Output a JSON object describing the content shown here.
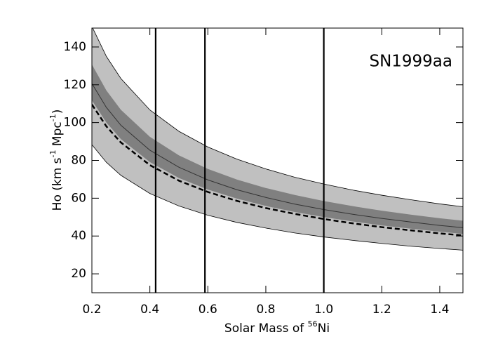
{
  "chart_data": {
    "type": "line",
    "annotation": "SN1999aa",
    "xlabel": [
      {
        "text": "Solar Mass of "
      },
      {
        "sup": "56"
      },
      {
        "text": "Ni"
      }
    ],
    "ylabel": [
      {
        "text": "Ho (km s"
      },
      {
        "sup": "-1"
      },
      {
        "text": " Mpc"
      },
      {
        "sup": "-1"
      },
      {
        "text": ")"
      }
    ],
    "x": [
      0.2,
      0.25,
      0.3,
      0.4,
      0.5,
      0.6,
      0.7,
      0.8,
      0.9,
      1.0,
      1.1,
      1.2,
      1.3,
      1.4,
      1.48
    ],
    "bands": [
      {
        "color": "#c0c0c0",
        "outline": true,
        "upper": [
          150.9,
          135,
          123.3,
          106.7,
          95.4,
          87.1,
          80.7,
          75.5,
          71.1,
          67.5,
          64.3,
          61.6,
          59.2,
          57.0,
          55.5
        ],
        "lower": [
          88.3,
          79,
          72.1,
          62.5,
          55.9,
          51,
          47.2,
          44.2,
          41.6,
          39.5,
          37.7,
          36.1,
          34.6,
          33.4,
          32.5
        ]
      },
      {
        "color": "#808080",
        "outline": false,
        "upper": [
          130.8,
          117,
          106.8,
          92.5,
          82.7,
          75.5,
          69.9,
          65.4,
          61.7,
          58.5,
          55.8,
          53.4,
          51.3,
          49.4,
          48.1
        ],
        "lower": [
          111.8,
          100,
          91.3,
          79.1,
          70.7,
          64.6,
          59.8,
          55.9,
          52.7,
          50,
          47.7,
          45.6,
          43.9,
          42.3,
          41.1
        ]
      }
    ],
    "series": [
      {
        "color": "#333333",
        "style": "solid",
        "values": [
          120.7,
          108,
          98.6,
          85.4,
          76.4,
          69.7,
          64.5,
          60.4,
          56.9,
          54,
          51.5,
          49.3,
          47.4,
          45.6,
          44.4
        ]
      },
      {
        "color": "#000000",
        "style": "dashed",
        "values": [
          109.6,
          98,
          89.5,
          77.5,
          69.3,
          63.3,
          58.6,
          54.8,
          51.7,
          49,
          46.7,
          44.7,
          43.0,
          41.4,
          40.3
        ]
      }
    ],
    "vlines": [
      0.42,
      0.59,
      1.0
    ],
    "xlim": [
      0.2,
      1.48
    ],
    "ylim": [
      10,
      150
    ],
    "xticks": [
      0.2,
      0.4,
      0.6,
      0.8,
      {
        "value": 1.0,
        "label": "1.0"
      },
      1.2,
      1.4
    ],
    "yticks": [
      20,
      40,
      60,
      80,
      100,
      120,
      140
    ]
  }
}
